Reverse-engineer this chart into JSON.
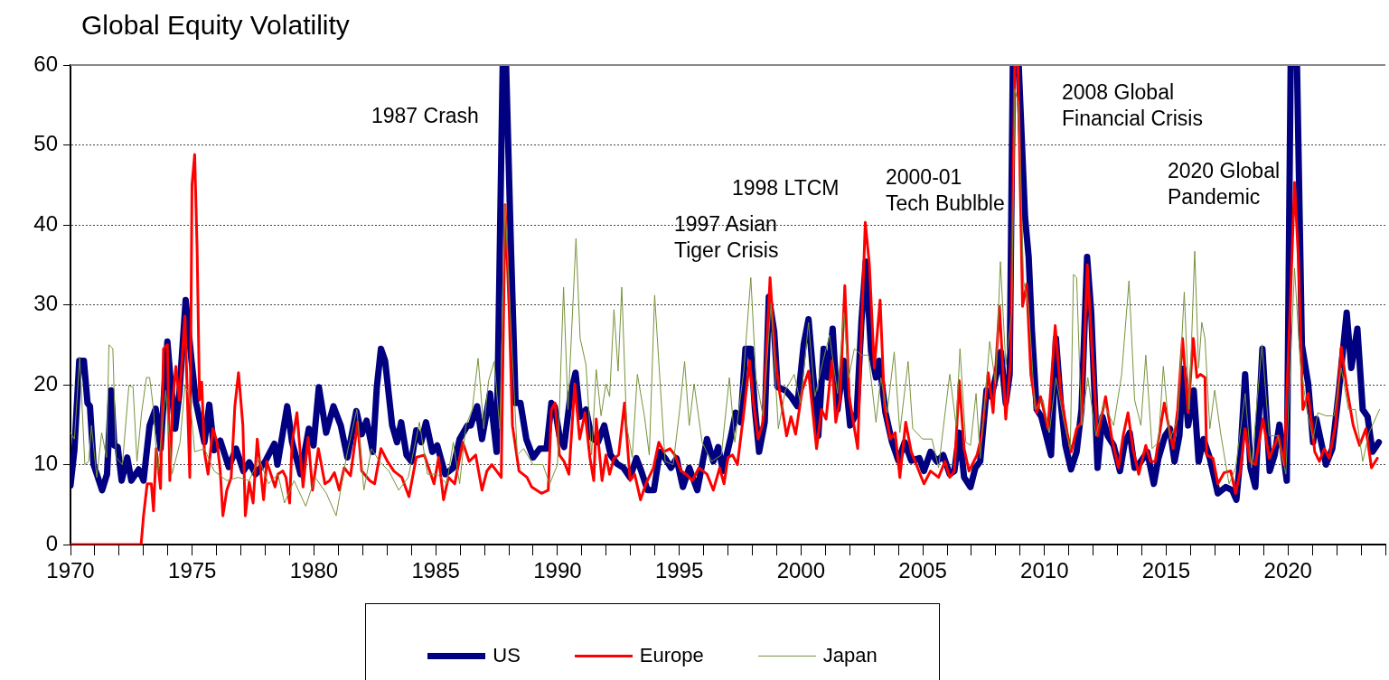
{
  "chart_data": {
    "type": "line",
    "title": "Global Equity Volatility",
    "xlim": [
      1970,
      2024
    ],
    "xticks": [
      1970,
      {
        "value": 1971,
        "label": null
      },
      {
        "value": 1972,
        "label": null
      },
      {
        "value": 1973,
        "label": null
      },
      {
        "value": 1974,
        "label": null
      },
      1975,
      {
        "value": 1976,
        "label": null
      },
      {
        "value": 1977,
        "label": null
      },
      {
        "value": 1978,
        "label": null
      },
      {
        "value": 1979,
        "label": null
      },
      1980,
      {
        "value": 1981,
        "label": null
      },
      {
        "value": 1982,
        "label": null
      },
      {
        "value": 1983,
        "label": null
      },
      {
        "value": 1984,
        "label": null
      },
      1985,
      {
        "value": 1986,
        "label": null
      },
      {
        "value": 1987,
        "label": null
      },
      {
        "value": 1988,
        "label": null
      },
      {
        "value": 1989,
        "label": null
      },
      1990,
      {
        "value": 1991,
        "label": null
      },
      {
        "value": 1992,
        "label": null
      },
      {
        "value": 1993,
        "label": null
      },
      {
        "value": 1994,
        "label": null
      },
      1995,
      {
        "value": 1996,
        "label": null
      },
      {
        "value": 1997,
        "label": null
      },
      {
        "value": 1998,
        "label": null
      },
      {
        "value": 1999,
        "label": null
      },
      2000,
      {
        "value": 2001,
        "label": null
      },
      {
        "value": 2002,
        "label": null
      },
      {
        "value": 2003,
        "label": null
      },
      {
        "value": 2004,
        "label": null
      },
      2005,
      {
        "value": 2006,
        "label": null
      },
      {
        "value": 2007,
        "label": null
      },
      {
        "value": 2008,
        "label": null
      },
      {
        "value": 2009,
        "label": null
      },
      2010,
      {
        "value": 2011,
        "label": null
      },
      {
        "value": 2012,
        "label": null
      },
      {
        "value": 2013,
        "label": null
      },
      {
        "value": 2014,
        "label": null
      },
      2015,
      {
        "value": 2016,
        "label": null
      },
      {
        "value": 2017,
        "label": null
      },
      {
        "value": 2018,
        "label": null
      },
      {
        "value": 2019,
        "label": null
      },
      2020,
      {
        "value": 2021,
        "label": null
      },
      {
        "value": 2022,
        "label": null
      },
      {
        "value": 2023,
        "label": null
      },
      {
        "value": 2024,
        "label": null
      }
    ],
    "ylim": [
      0,
      60
    ],
    "yticks": [
      0,
      10,
      20,
      30,
      40,
      50,
      60
    ],
    "grid": "y",
    "legend": "bottom",
    "annotations": [
      "1987 Crash",
      "1998 LTCM",
      "1997 Asian\nTiger Crisis",
      "2000-01\nTech Bublble",
      "2008 Global\nFinancial Crisis",
      "2020 Global\nPandemic"
    ],
    "series": [
      {
        "name": "US",
        "color": "#000080",
        "x": [
          1970.0,
          1970.16,
          1970.36,
          1970.55,
          1970.7,
          1970.8,
          1970.95,
          1971.3,
          1971.5,
          1971.67,
          1971.8,
          1971.94,
          1972.1,
          1972.33,
          1972.5,
          1972.8,
          1973.0,
          1973.25,
          1973.5,
          1973.7,
          1973.98,
          1974.1,
          1974.3,
          1974.47,
          1974.73,
          1974.97,
          1975.16,
          1975.5,
          1975.7,
          1975.9,
          1976.15,
          1976.5,
          1976.8,
          1977.1,
          1977.34,
          1977.6,
          1978.0,
          1978.37,
          1978.5,
          1978.9,
          1979.1,
          1979.45,
          1979.79,
          1979.98,
          1980.2,
          1980.5,
          1980.8,
          1981.1,
          1981.37,
          1981.74,
          1981.96,
          1982.16,
          1982.42,
          1982.58,
          1982.75,
          1982.92,
          1983.21,
          1983.41,
          1983.58,
          1983.8,
          1984.0,
          1984.2,
          1984.4,
          1984.6,
          1984.86,
          1985.06,
          1985.39,
          1985.72,
          1985.98,
          1986.3,
          1986.44,
          1986.7,
          1986.9,
          1987.23,
          1987.5,
          1987.75,
          1987.89,
          1988.09,
          1988.28,
          1988.48,
          1988.72,
          1989.0,
          1989.27,
          1989.55,
          1989.75,
          1989.88,
          1990.08,
          1990.27,
          1990.54,
          1990.74,
          1990.93,
          1991.17,
          1991.4,
          1991.66,
          1991.92,
          1992.18,
          1992.45,
          1992.71,
          1992.98,
          1993.24,
          1993.44,
          1993.7,
          1993.96,
          1994.2,
          1994.42,
          1994.66,
          1994.89,
          1995.15,
          1995.41,
          1995.74,
          1996.14,
          1996.4,
          1996.6,
          1996.8,
          1997.13,
          1997.32,
          1997.52,
          1997.72,
          1997.94,
          1998.11,
          1998.28,
          1998.51,
          1998.68,
          1998.9,
          1999.04,
          1999.36,
          1999.59,
          1999.85,
          2000.11,
          2000.31,
          2000.51,
          2000.71,
          2000.93,
          2001.1,
          2001.3,
          2001.5,
          2001.76,
          2002.02,
          2002.29,
          2002.48,
          2002.66,
          2002.88,
          2003.08,
          2003.21,
          2003.47,
          2003.74,
          2004.0,
          2004.26,
          2004.53,
          2004.86,
          2005.05,
          2005.32,
          2005.58,
          2005.84,
          2006.11,
          2006.3,
          2006.5,
          2006.7,
          2006.96,
          2007.16,
          2007.36,
          2007.62,
          2007.82,
          2008.02,
          2008.21,
          2008.41,
          2008.57,
          2008.7,
          2008.94,
          2009.2,
          2009.35,
          2009.48,
          2009.68,
          2009.87,
          2010.07,
          2010.27,
          2010.47,
          2010.67,
          2010.86,
          2011.09,
          2011.32,
          2011.52,
          2011.75,
          2011.92,
          2012.18,
          2012.38,
          2012.6,
          2012.84,
          2013.1,
          2013.3,
          2013.5,
          2013.7,
          2013.96,
          2014.22,
          2014.49,
          2014.68,
          2014.95,
          2015.15,
          2015.34,
          2015.54,
          2015.7,
          2015.9,
          2016.13,
          2016.33,
          2016.53,
          2016.79,
          2017.12,
          2017.45,
          2017.71,
          2017.88,
          2018.04,
          2018.24,
          2018.46,
          2018.66,
          2018.95,
          2019.25,
          2019.45,
          2019.65,
          2019.95,
          2020.11,
          2020.37,
          2020.57,
          2020.83,
          2021.03,
          2021.16,
          2021.56,
          2021.82,
          2022.08,
          2022.41,
          2022.6,
          2022.85,
          2023.07,
          2023.27,
          2023.47,
          2023.73
        ],
        "values": [
          7.4,
          11.8,
          23,
          23,
          17.7,
          17.3,
          10,
          6.8,
          8.8,
          19.3,
          12.4,
          12.2,
          8,
          10.9,
          8,
          9.4,
          8,
          14.9,
          17,
          12,
          25.4,
          21,
          14.5,
          18.9,
          30.6,
          23,
          17.7,
          12.8,
          17.5,
          11.8,
          13,
          9.7,
          12,
          9.2,
          10.3,
          8.8,
          10.4,
          12.6,
          10,
          17.3,
          12.8,
          8.8,
          14.5,
          12.4,
          19.7,
          14,
          17.3,
          14.9,
          10.9,
          16.7,
          13.8,
          15.5,
          11.6,
          19.7,
          24.5,
          23,
          14.9,
          12.8,
          15.3,
          11.2,
          10.4,
          14.3,
          12.8,
          15.3,
          11.6,
          12.4,
          8.8,
          9.6,
          13.2,
          14.9,
          14.9,
          17.3,
          13.2,
          18.9,
          11.6,
          60,
          60,
          37,
          17.7,
          17.7,
          13.2,
          10.9,
          12,
          12,
          17.7,
          17.3,
          13.6,
          12.2,
          18.9,
          21.5,
          16,
          16.9,
          13.4,
          12.8,
          14.9,
          11.2,
          10.1,
          9.6,
          8.4,
          10.8,
          9.2,
          6.8,
          6.8,
          11.6,
          10.8,
          9.6,
          10.8,
          7.2,
          9.6,
          6.8,
          13.2,
          10.4,
          12.2,
          9.2,
          13.6,
          16.5,
          15.3,
          24.5,
          24.5,
          16.9,
          11.6,
          15.3,
          31,
          26.6,
          19.7,
          19.3,
          18.5,
          17.3,
          25,
          28.2,
          20.9,
          13.6,
          24.5,
          20.9,
          27,
          16.9,
          23,
          14.9,
          16.5,
          27.8,
          35.4,
          24.1,
          20.9,
          23,
          16.5,
          12.8,
          10.5,
          12.8,
          10.5,
          10.8,
          9.2,
          11.6,
          10.4,
          11.2,
          8.8,
          9.2,
          14,
          8.4,
          7.2,
          9.6,
          10.4,
          19.3,
          18.5,
          21.3,
          24.1,
          17.7,
          21.3,
          60,
          60,
          41,
          36,
          27,
          16.9,
          16,
          13.6,
          11.2,
          25.8,
          17.7,
          12.4,
          9.4,
          11.6,
          16.9,
          36,
          29,
          9.6,
          16,
          13.6,
          12.4,
          9.2,
          12.8,
          14,
          9.6,
          10.4,
          11.6,
          7.6,
          10.8,
          13.6,
          14.5,
          10.4,
          13.6,
          22,
          14.9,
          19.3,
          10.4,
          13.2,
          10.8,
          6.4,
          7.2,
          6.8,
          5.6,
          10.8,
          21.3,
          9.6,
          7.2,
          24.5,
          9.2,
          11.2,
          15,
          8,
          60,
          60,
          25,
          20.1,
          12.8,
          15.7,
          10,
          12,
          18.9,
          29,
          22.1,
          27,
          16.9,
          16,
          11.6,
          12.8
        ]
      },
      {
        "name": "Europe",
        "color": "#ff0000",
        "x": [
          1970.0,
          1972.9,
          1973.0,
          1973.15,
          1973.32,
          1973.41,
          1973.52,
          1973.7,
          1973.82,
          1973.98,
          1974.08,
          1974.2,
          1974.33,
          1974.47,
          1974.7,
          1974.9,
          1974.99,
          1975.1,
          1975.2,
          1975.3,
          1975.39,
          1975.5,
          1975.65,
          1975.85,
          1976.02,
          1976.15,
          1976.26,
          1976.42,
          1976.6,
          1976.75,
          1976.9,
          1977.08,
          1977.18,
          1977.34,
          1977.5,
          1977.67,
          1977.93,
          1978.06,
          1978.4,
          1978.52,
          1978.72,
          1978.85,
          1979.0,
          1979.1,
          1979.3,
          1979.55,
          1979.76,
          1979.94,
          1980.18,
          1980.45,
          1980.64,
          1980.84,
          1981.04,
          1981.24,
          1981.5,
          1981.79,
          1981.96,
          1982.29,
          1982.49,
          1982.75,
          1983.02,
          1983.28,
          1983.61,
          1983.9,
          1984.2,
          1984.53,
          1984.93,
          1985.12,
          1985.32,
          1985.52,
          1985.78,
          1986.11,
          1986.37,
          1986.64,
          1986.9,
          1987.1,
          1987.3,
          1987.5,
          1987.69,
          1987.85,
          1988.02,
          1988.15,
          1988.42,
          1988.75,
          1988.94,
          1989.34,
          1989.62,
          1989.75,
          1989.9,
          1990.08,
          1990.27,
          1990.47,
          1990.71,
          1990.91,
          1991.13,
          1991.33,
          1991.49,
          1991.59,
          1991.83,
          1991.99,
          1992.14,
          1992.32,
          1992.51,
          1992.75,
          1992.98,
          1993.17,
          1993.41,
          1993.63,
          1993.94,
          1994.16,
          1994.36,
          1994.62,
          1994.82,
          1995.08,
          1995.28,
          1995.54,
          1995.81,
          1996.14,
          1996.4,
          1996.66,
          1996.84,
          1997.0,
          1997.19,
          1997.39,
          1997.65,
          1997.89,
          1998.05,
          1998.24,
          1998.44,
          1998.73,
          1998.94,
          1999.13,
          1999.41,
          1999.59,
          1999.78,
          2000.05,
          2000.31,
          2000.64,
          2000.84,
          2001.03,
          2001.27,
          2001.43,
          2001.6,
          2001.8,
          2001.98,
          2002.33,
          2002.51,
          2002.64,
          2002.81,
          2003.01,
          2003.25,
          2003.43,
          2003.67,
          2003.87,
          2004.06,
          2004.3,
          2004.53,
          2004.79,
          2005.05,
          2005.32,
          2005.65,
          2005.91,
          2006.11,
          2006.3,
          2006.5,
          2006.7,
          2006.9,
          2007.23,
          2007.42,
          2007.69,
          2007.89,
          2008.15,
          2008.41,
          2008.61,
          2008.78,
          2008.91,
          2009.1,
          2009.27,
          2009.44,
          2009.68,
          2009.84,
          2010.14,
          2010.44,
          2010.67,
          2010.93,
          2011.1,
          2011.32,
          2011.52,
          2011.76,
          2011.94,
          2012.18,
          2012.51,
          2012.77,
          2013.04,
          2013.23,
          2013.43,
          2013.63,
          2013.87,
          2014.16,
          2014.35,
          2014.55,
          2014.92,
          2015.28,
          2015.47,
          2015.67,
          2015.9,
          2016.11,
          2016.26,
          2016.4,
          2016.59,
          2016.66,
          2016.92,
          2017.12,
          2017.38,
          2017.65,
          2017.85,
          2018.04,
          2018.24,
          2018.44,
          2018.66,
          2018.97,
          2019.23,
          2019.61,
          2019.84,
          2020.08,
          2020.27,
          2020.44,
          2020.61,
          2020.83,
          2021.1,
          2021.29,
          2021.49,
          2021.69,
          2021.95,
          2022.19,
          2022.41,
          2022.68,
          2022.94,
          2023.2,
          2023.43,
          2023.67
        ],
        "values": [
          0,
          0,
          3.6,
          7.6,
          7.6,
          4.2,
          12,
          7,
          24.5,
          25,
          8,
          18.1,
          22.3,
          18.1,
          28.6,
          8.4,
          45,
          48.8,
          37,
          18.1,
          20.3,
          11.6,
          8.8,
          14.5,
          12.8,
          9.2,
          3.6,
          6.8,
          8.4,
          17.3,
          21.5,
          14.9,
          3.6,
          7.8,
          5.2,
          13.2,
          5.6,
          10.4,
          7.2,
          8.8,
          9.2,
          8.4,
          5.2,
          12.8,
          16.5,
          7.2,
          13.4,
          6.8,
          12,
          7.6,
          8,
          9,
          6.8,
          9.6,
          8.6,
          15.3,
          9.2,
          8,
          7.6,
          12,
          10.4,
          9.2,
          8.4,
          6,
          10.9,
          11.2,
          7.6,
          10.9,
          5.6,
          8.4,
          7.6,
          12.8,
          10.4,
          11.2,
          6.8,
          9.2,
          10,
          9.2,
          8.4,
          42.5,
          29,
          14.9,
          9.2,
          8.4,
          7.2,
          6.4,
          6.8,
          16.9,
          17.7,
          11.2,
          10.4,
          8.8,
          20.1,
          13.2,
          16.5,
          10.9,
          8,
          15.7,
          8,
          11.2,
          8.8,
          10.8,
          11.2,
          17.7,
          8,
          8.8,
          5.6,
          7.6,
          9.6,
          12.8,
          11.6,
          12,
          11.2,
          9.2,
          8.8,
          8,
          9.6,
          8.8,
          6.8,
          9.6,
          7.6,
          10.9,
          11.2,
          10,
          16.5,
          23,
          17.7,
          13.2,
          15.3,
          33.4,
          23.3,
          18.9,
          13.6,
          16,
          13.8,
          19.3,
          21.7,
          12,
          16.9,
          15.7,
          23,
          15.3,
          18.1,
          32.4,
          18.5,
          12,
          29,
          40.3,
          35,
          22.1,
          30.6,
          17.3,
          13.2,
          14,
          8.4,
          15.3,
          11.6,
          9.6,
          7.6,
          9.2,
          8.4,
          10.4,
          8.4,
          9.2,
          20.5,
          12,
          9.2,
          11.2,
          13.6,
          21.5,
          16.5,
          29.8,
          15.7,
          23,
          60,
          60,
          29.8,
          32.6,
          21.3,
          16.5,
          18.5,
          14.5,
          27.4,
          18.9,
          14,
          11.6,
          14.5,
          15.3,
          35,
          25,
          13.6,
          18.5,
          13.2,
          9.6,
          13.6,
          16.5,
          12,
          8.8,
          12.4,
          10.4,
          10.4,
          17.7,
          12,
          16.9,
          25.8,
          16.5,
          25.8,
          20.9,
          21.3,
          20.9,
          11.2,
          10.8,
          7.6,
          9,
          9.2,
          6.4,
          9.2,
          14.5,
          10.4,
          10,
          15.7,
          10.8,
          13.6,
          10,
          29,
          45.3,
          35,
          16.9,
          18.9,
          11.6,
          10.4,
          12,
          10.8,
          14.9,
          24.7,
          19.7,
          14.9,
          12.4,
          14.5,
          9.6,
          10.8
        ]
      },
      {
        "name": "Japan",
        "color": "#77933c",
        "x": [
          1970.0,
          1970.16,
          1970.38,
          1970.59,
          1970.75,
          1970.86,
          1971.08,
          1971.28,
          1971.48,
          1971.58,
          1971.74,
          1971.87,
          1972.13,
          1972.4,
          1972.57,
          1972.73,
          1972.92,
          1973.12,
          1973.25,
          1973.41,
          1973.58,
          1973.91,
          1974.17,
          1974.5,
          1974.7,
          1974.9,
          1975.1,
          1975.5,
          1975.9,
          1976.42,
          1976.88,
          1977.34,
          1977.74,
          1978.13,
          1978.52,
          1978.79,
          1979.18,
          1979.66,
          1980.05,
          1980.51,
          1980.91,
          1981.37,
          1981.76,
          1982.05,
          1982.36,
          1982.69,
          1983.08,
          1983.48,
          1983.87,
          1984.33,
          1984.66,
          1985.06,
          1985.45,
          1985.72,
          1985.98,
          1986.24,
          1986.5,
          1986.74,
          1986.97,
          1987.17,
          1987.4,
          1987.63,
          1987.85,
          1988.06,
          1988.35,
          1988.61,
          1989.0,
          1989.4,
          1989.68,
          1990.0,
          1990.25,
          1990.43,
          1990.76,
          1990.93,
          1991.17,
          1991.4,
          1991.59,
          1991.79,
          1991.99,
          1992.14,
          1992.32,
          1992.49,
          1992.64,
          1992.84,
          1993.07,
          1993.28,
          1993.57,
          1993.77,
          1993.99,
          1994.16,
          1994.42,
          1994.75,
          1995.02,
          1995.22,
          1995.41,
          1995.61,
          1995.94,
          1996.33,
          1996.73,
          1997.06,
          1997.28,
          1997.65,
          1997.94,
          1998.15,
          1998.44,
          1998.77,
          1999.07,
          1999.36,
          1999.72,
          1999.98,
          2000.31,
          2000.57,
          2000.9,
          2001.17,
          2001.5,
          2001.76,
          2001.96,
          2002.19,
          2002.48,
          2002.77,
          2003.08,
          2003.28,
          2003.54,
          2003.83,
          2004.06,
          2004.4,
          2004.59,
          2004.99,
          2005.38,
          2005.65,
          2005.84,
          2006.11,
          2006.37,
          2006.53,
          2006.77,
          2006.96,
          2007.19,
          2007.36,
          2007.75,
          2007.99,
          2008.19,
          2008.41,
          2008.65,
          2008.78,
          2008.94,
          2009.14,
          2009.35,
          2009.61,
          2009.94,
          2010.2,
          2010.47,
          2010.8,
          2011.06,
          2011.19,
          2011.32,
          2011.52,
          2011.78,
          2012.11,
          2012.44,
          2012.84,
          2013.17,
          2013.47,
          2013.7,
          2013.96,
          2014.16,
          2014.42,
          2014.68,
          2014.88,
          2015.15,
          2015.47,
          2015.74,
          2015.94,
          2016.17,
          2016.33,
          2016.46,
          2016.59,
          2016.79,
          2016.99,
          2017.25,
          2017.58,
          2017.85,
          2018.24,
          2018.5,
          2018.93,
          2019.23,
          2019.58,
          2019.91,
          2020.27,
          2020.5,
          2020.77,
          2021.03,
          2021.23,
          2021.56,
          2021.89,
          2022.19,
          2022.48,
          2022.77,
          2023.07,
          2023.33,
          2023.76
        ],
        "values": [
          14,
          13.2,
          23.5,
          10,
          10.4,
          14.9,
          8.4,
          14,
          10.9,
          25,
          24.5,
          10.9,
          10,
          19.9,
          19.7,
          10.4,
          16.5,
          20.9,
          20.9,
          16.9,
          8.8,
          19.3,
          8.8,
          12.8,
          19.9,
          18.5,
          11.6,
          12,
          9.2,
          8,
          8.4,
          8,
          10.8,
          7.6,
          8.8,
          5.2,
          8,
          4.8,
          8.4,
          6.4,
          3.6,
          11.6,
          16.9,
          6.8,
          12,
          10.4,
          9.2,
          6.8,
          8.4,
          15.3,
          8.8,
          8.8,
          7.6,
          12.8,
          7.6,
          14.9,
          16.9,
          23.3,
          14.5,
          20.5,
          22.9,
          14.5,
          42.5,
          29,
          11.2,
          12,
          10,
          10,
          7.6,
          10,
          32.2,
          16.9,
          38.3,
          25.8,
          22.5,
          11.2,
          21.9,
          16.1,
          20.1,
          18.5,
          29.4,
          21.7,
          32.2,
          14.9,
          10.9,
          21.3,
          16.1,
          11.2,
          31.2,
          22.9,
          10.4,
          10,
          16.9,
          22.9,
          14.9,
          20.1,
          12.8,
          10.4,
          11.2,
          20.9,
          12.8,
          21.7,
          33.4,
          20.9,
          16.1,
          30.2,
          14.5,
          19.3,
          21.3,
          17.7,
          27.8,
          18.5,
          22.9,
          26.2,
          18.9,
          29,
          20.9,
          24.5,
          23.7,
          23.7,
          15.3,
          20.9,
          16.5,
          24.1,
          14,
          22.9,
          14.5,
          13.2,
          13.2,
          9.6,
          14.5,
          21.3,
          14.9,
          24.5,
          12.8,
          12.4,
          18.9,
          10.8,
          25.4,
          20.1,
          35.4,
          22.5,
          29,
          57,
          55,
          33,
          29.8,
          16.9,
          18.1,
          14,
          20.9,
          15.3,
          12,
          33.8,
          33.4,
          14.9,
          20.9,
          13.6,
          17.7,
          14.9,
          21.3,
          33,
          18.1,
          14.9,
          23.7,
          12,
          12.8,
          22.3,
          13.2,
          15.7,
          31.6,
          16.9,
          36.7,
          22.1,
          27.8,
          25.8,
          14.5,
          19.3,
          13.6,
          7.6,
          9.6,
          18.9,
          9.6,
          25,
          13.6,
          13.6,
          8.8,
          34.6,
          22.9,
          16.9,
          13.2,
          16.5,
          16.1,
          16.1,
          22.1,
          16.9,
          16.9,
          10.4,
          14,
          16.9
        ]
      }
    ]
  }
}
